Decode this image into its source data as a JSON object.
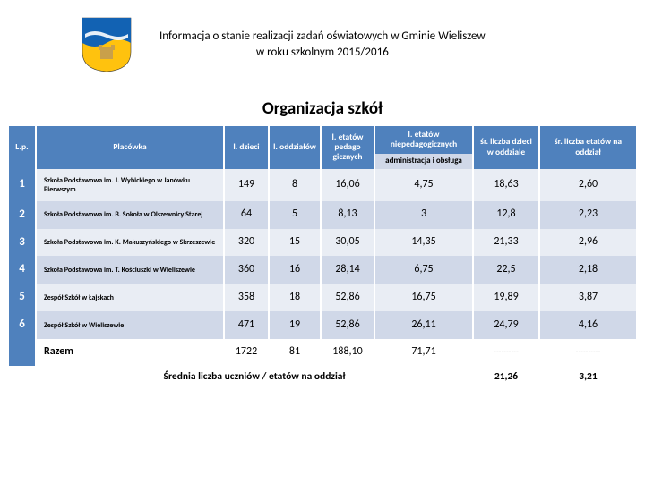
{
  "header_line1": "Informacja o stanie realizacji zadań oświatowych w Gminie Wieliszew",
  "header_line2": "w roku szkolnym 2015/2016",
  "section_title": "Organizacja szkół",
  "columns": {
    "lp": "L.p.",
    "placowka": "Placówka",
    "ldzieci": "l. dzieci",
    "loddzialow": "l. oddziałów",
    "letatow_ped": "l. etatów pedago gicznych",
    "letatow_nieped_top": "l. etatów niepedagogicznych",
    "letatow_nieped_sub": "administracja i obsługa",
    "sr_dzieci": "śr. liczba dzieci w oddziale",
    "sr_etatow": "śr. liczba etatów na oddział"
  },
  "rows": [
    {
      "lp": "1",
      "pl": "Szkoła Podstawowa im. J. Wybickiego w Janówku Pierwszym",
      "d": "149",
      "o": "8",
      "ep": "16,06",
      "en": "4,75",
      "sl": "18,63",
      "se": "2,60"
    },
    {
      "lp": "2",
      "pl": "Szkoła Podstawowa im. B. Sokoła w Olszewnicy Starej",
      "d": "64",
      "o": "5",
      "ep": "8,13",
      "en": "3",
      "sl": "12,8",
      "se": "2,23"
    },
    {
      "lp": "3",
      "pl": "Szkoła Podstawowa im. K. Makuszyńskiego w Skrzeszewie",
      "d": "320",
      "o": "15",
      "ep": "30,05",
      "en": "14,35",
      "sl": "21,33",
      "se": "2,96"
    },
    {
      "lp": "4",
      "pl": "Szkoła Podstawowa im. T. Kościuszki w Wieliszewie",
      "d": "360",
      "o": "16",
      "ep": "28,14",
      "en": "6,75",
      "sl": "22,5",
      "se": "2,18"
    },
    {
      "lp": "5",
      "pl": "Zespół Szkół w Łajskach",
      "d": "358",
      "o": "18",
      "ep": "52,86",
      "en": "16,75",
      "sl": "19,89",
      "se": "3,87"
    },
    {
      "lp": "6",
      "pl": "Zespół Szkół w Wieliszewie",
      "d": "471",
      "o": "19",
      "ep": "52,86",
      "en": "26,11",
      "sl": "24,79",
      "se": "4,16"
    }
  ],
  "sum": {
    "label": "Razem",
    "d": "1722",
    "o": "81",
    "ep": "188,10",
    "en": "71,71",
    "sl": "----------",
    "se": "----------"
  },
  "avg": {
    "label": "Średnia liczba uczniów / etatów na oddział",
    "sl": "21,26",
    "se": "3,21"
  },
  "colors": {
    "brand_blue": "#4f81bd",
    "band_light": "#e9edf4",
    "band_dark": "#d0d8e8",
    "crest_gold": "#ffc20e",
    "crest_wave": "#1262b3"
  }
}
